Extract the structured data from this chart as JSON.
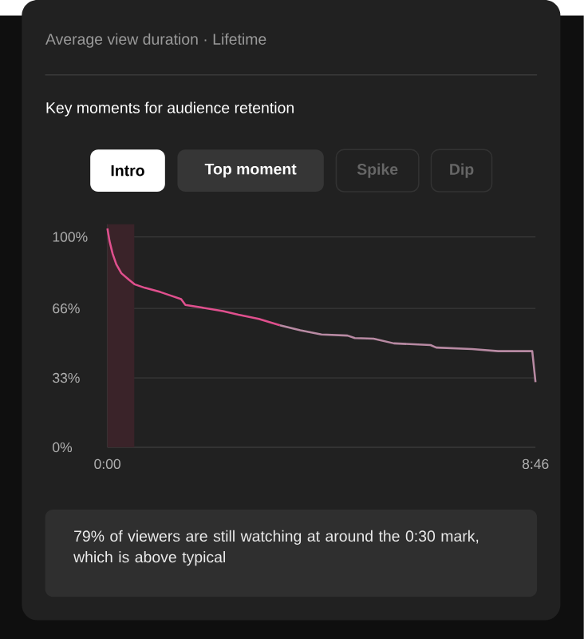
{
  "chart_data": {
    "type": "line",
    "title": "Key moments for audience retention",
    "subtitle": "Average view duration · Lifetime",
    "annotations": [
      "Intro",
      "Top moment",
      "Spike",
      "Dip",
      "79% of viewers are still watching at around the 0:30 mark, which is above typical"
    ],
    "xlim": [
      0,
      526
    ],
    "ylim": [
      0,
      106
    ],
    "xticks": [
      {
        "value": 0,
        "label": "0:00"
      },
      {
        "value": 526,
        "label": "8:46"
      }
    ],
    "yticks": [
      {
        "value": 0,
        "label": "0%"
      },
      {
        "value": 33,
        "label": "33%"
      },
      {
        "value": 66,
        "label": "66%"
      },
      {
        "value": 100,
        "label": "100%"
      }
    ],
    "grid": "y",
    "bands": [
      {
        "axis": "x",
        "from": 0,
        "to": 33,
        "color": "#3a2329"
      }
    ],
    "series": [
      {
        "color": "#e0508e",
        "x": [
          0,
          2.6,
          6.4,
          10.9,
          17.2,
          26.8,
          33.2,
          46,
          65,
          78,
          90.6,
          95.8,
          116,
          142,
          161,
          186,
          212
        ],
        "values": [
          104,
          98,
          92,
          87,
          82.7,
          79.5,
          77.5,
          75.8,
          73.8,
          72.1,
          70.4,
          67.7,
          66.4,
          64.7,
          63,
          61,
          58
        ]
      },
      {
        "color": "#b88aa3",
        "x": [
          212,
          237,
          263,
          295,
          304,
          327,
          352,
          397,
          404,
          448,
          480,
          522,
          526
        ],
        "values": [
          58,
          55.6,
          53.6,
          53.1,
          51.9,
          51.6,
          49.4,
          48.6,
          47.4,
          46.7,
          45.7,
          45.7,
          31
        ]
      }
    ]
  }
}
